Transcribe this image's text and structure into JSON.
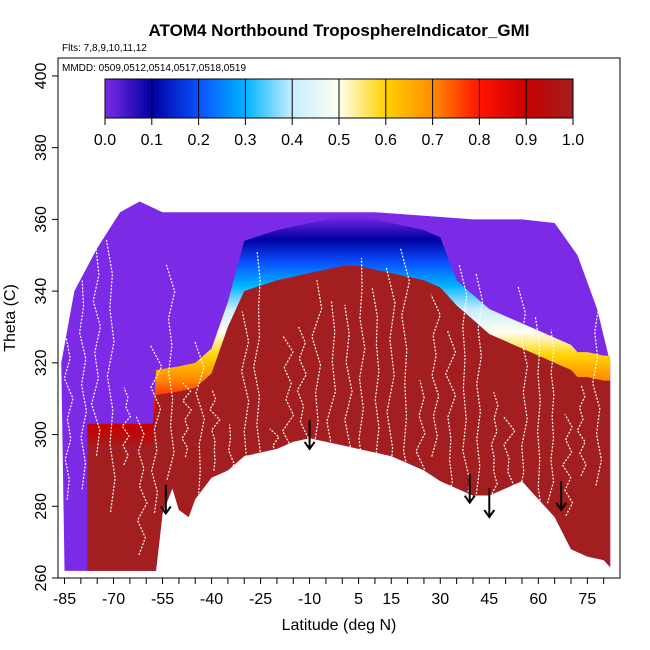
{
  "chart_data": {
    "type": "heatmap",
    "title": "ATOM4 Northbound TroposphereIndicator_GMI",
    "subtitle_flights": "Flts: 7,8,9,10,11,12",
    "subtitle_dates": "MMDD: 0509,0512,0514,0517,0518,0519",
    "xlabel": "Latitude (deg N)",
    "ylabel": "Theta (C)",
    "xlim": [
      -87,
      85
    ],
    "ylim": [
      260,
      405
    ],
    "x_ticks": [
      -85,
      -70,
      -55,
      -40,
      -25,
      -10,
      5,
      15,
      30,
      45,
      60,
      75
    ],
    "x_tick_labels": [
      "-85",
      "-70",
      "-55",
      "-40",
      "-25",
      "-10",
      "5",
      "15",
      "30",
      "45",
      "60",
      "75"
    ],
    "y_ticks": [
      260,
      280,
      300,
      320,
      340,
      360,
      380,
      400
    ],
    "y_tick_labels": [
      "260",
      "280",
      "300",
      "320",
      "340",
      "360",
      "380",
      "400"
    ],
    "colorbar": {
      "range": [
        0,
        1
      ],
      "ticks": [
        0.0,
        0.1,
        0.2,
        0.3,
        0.4,
        0.5,
        0.6,
        0.7,
        0.8,
        0.9,
        1.0
      ],
      "tick_labels": [
        "0.0",
        "0.1",
        "0.2",
        "0.3",
        "0.4",
        "0.5",
        "0.6",
        "0.7",
        "0.8",
        "0.9",
        "1.0"
      ],
      "colors": [
        "#7b2be6",
        "#0000a0",
        "#0a50ff",
        "#00b4ff",
        "#c8ecff",
        "#fffff0",
        "#ffd200",
        "#ff8c00",
        "#ff1400",
        "#c80000",
        "#a31e1e"
      ]
    },
    "tropopause_boundary": {
      "lat": [
        -78,
        -58,
        -57,
        -50,
        -45,
        -40,
        -35,
        -30,
        -20,
        -10,
        -5,
        0,
        5,
        10,
        15,
        20,
        25,
        30,
        35,
        40,
        45,
        50,
        55,
        60,
        65,
        70,
        72,
        75,
        80,
        82
      ],
      "theta": [
        296,
        296,
        311,
        312,
        313,
        317,
        330,
        340,
        343,
        345,
        346,
        347,
        347,
        346,
        345,
        344,
        343,
        341,
        336,
        332,
        328,
        326,
        324,
        322,
        320,
        318,
        316,
        316,
        315,
        315
      ]
    },
    "surface_boundary": {
      "lat": [
        -85,
        -78,
        -57,
        -55,
        -52,
        -50,
        -47,
        -45,
        -40,
        -35,
        -30,
        -25,
        -20,
        -15,
        -10,
        -5,
        0,
        5,
        10,
        15,
        20,
        25,
        30,
        35,
        40,
        45,
        50,
        55,
        60,
        65,
        70,
        75,
        80,
        82
      ],
      "theta": [
        262,
        262,
        262,
        278,
        285,
        279,
        277,
        282,
        288,
        290,
        294,
        295,
        296,
        298,
        299,
        298,
        297,
        296,
        295,
        294,
        292,
        290,
        287,
        285,
        283,
        283,
        285,
        287,
        282,
        277,
        268,
        266,
        265,
        263
      ]
    },
    "arrows_lat": [
      -54,
      -10,
      39,
      45,
      67
    ],
    "arrows_theta": [
      286,
      304,
      289,
      285,
      287
    ]
  }
}
